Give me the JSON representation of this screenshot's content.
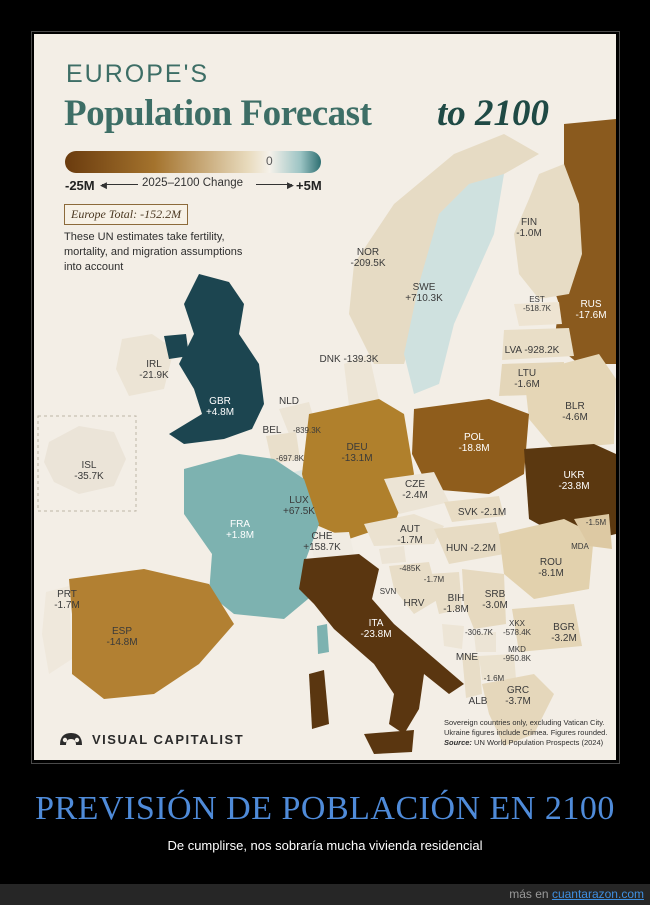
{
  "title": {
    "line1": "EUROPE'S",
    "line2": "Population Forecast",
    "line3": "to 2100"
  },
  "legend": {
    "zero": "0",
    "min": "-25M",
    "max": "+5M",
    "caption": "2025–2100 Change",
    "colors": {
      "negative": "#6a3b0e",
      "neutral": "#f5f1ea",
      "positive": "#2e6f72"
    }
  },
  "total": "Europe Total: -152.2M",
  "note": "These UN estimates take fertility, mortality, and migration assumptions into account",
  "countries": [
    {
      "code": "FIN",
      "value": "-1.0M"
    },
    {
      "code": "NOR",
      "value": "-209.5K"
    },
    {
      "code": "SWE",
      "value": "+710.3K"
    },
    {
      "code": "EST",
      "value": "-518.7K"
    },
    {
      "code": "RUS",
      "value": "-17.6M"
    },
    {
      "code": "LVA",
      "value": "-928.2K"
    },
    {
      "code": "DNK",
      "value": "-139.3K"
    },
    {
      "code": "LTU",
      "value": "-1.6M"
    },
    {
      "code": "IRL",
      "value": "-21.9K"
    },
    {
      "code": "GBR",
      "value": "+4.8M"
    },
    {
      "code": "BLR",
      "value": "-4.6M"
    },
    {
      "code": "NLD",
      "value": "-839.3K"
    },
    {
      "code": "BEL",
      "value": "-697.8K"
    },
    {
      "code": "DEU",
      "value": "-13.1M"
    },
    {
      "code": "POL",
      "value": "-18.8M"
    },
    {
      "code": "ISL",
      "value": "-35.7K"
    },
    {
      "code": "UKR",
      "value": "-23.8M"
    },
    {
      "code": "CZE",
      "value": "-2.4M"
    },
    {
      "code": "LUX",
      "value": "+67.5K"
    },
    {
      "code": "FRA",
      "value": "+1.8M"
    },
    {
      "code": "SVK",
      "value": "-2.1M"
    },
    {
      "code": "MDA",
      "value": "-1.5M"
    },
    {
      "code": "AUT",
      "value": "-1.7M"
    },
    {
      "code": "CHE",
      "value": "+158.7K"
    },
    {
      "code": "HUN",
      "value": "-2.2M"
    },
    {
      "code": "ROU",
      "value": "-8.1M"
    },
    {
      "code": "SVN",
      "value": "-485K"
    },
    {
      "code": "HRV",
      "value": "-1.7M"
    },
    {
      "code": "PRT",
      "value": "-1.7M"
    },
    {
      "code": "BIH",
      "value": "-1.8M"
    },
    {
      "code": "SRB",
      "value": "-3.0M"
    },
    {
      "code": "ESP",
      "value": "-14.8M"
    },
    {
      "code": "ITA",
      "value": "-23.8M"
    },
    {
      "code": "XKX",
      "value": "-578.4K"
    },
    {
      "code": "MNE",
      "value": "-306.7K"
    },
    {
      "code": "BGR",
      "value": "-3.2M"
    },
    {
      "code": "MKD",
      "value": "-950.8K"
    },
    {
      "code": "ALB",
      "value": "-1.6M"
    },
    {
      "code": "GRC",
      "value": "-3.7M"
    }
  ],
  "footnote": {
    "line1": "Sovereign countries only, excluding Vatican City.",
    "line2": "Ukraine figures include Crimea. Figures rounded.",
    "source_label": "Source:",
    "source": "UN World Population Prospects (2024)"
  },
  "brand": "VISUAL CAPITALIST",
  "caption": "PREVISIÓN DE POBLACIÓN EN 2100",
  "subcaption": "De cumplirse, nos sobraría mucha vivienda residencial",
  "footer": {
    "prefix": "más en",
    "link": "cuantarazon.com"
  }
}
